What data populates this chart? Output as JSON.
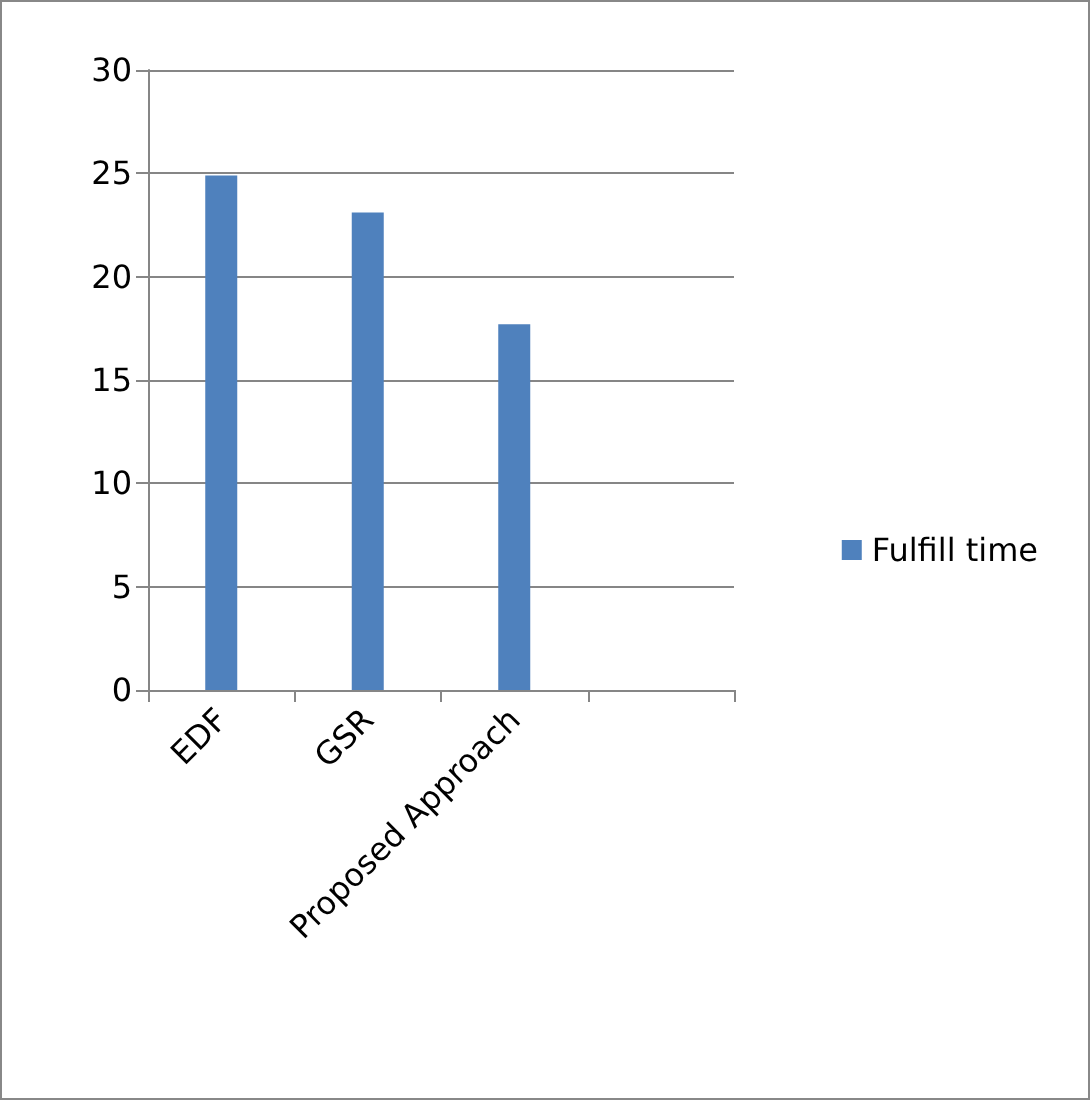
{
  "chart_data": {
    "type": "bar",
    "categories": [
      "EDF",
      "GSR",
      "Proposed Approach",
      null
    ],
    "series": [
      {
        "name": "Fulfill time",
        "color": "#4f81bd",
        "values": [
          24.9,
          23.1,
          17.7,
          null
        ]
      }
    ],
    "ylim": [
      0,
      30
    ],
    "yticks": [
      0,
      5,
      10,
      15,
      20,
      25,
      30
    ],
    "grid": "y",
    "legend": "right"
  }
}
